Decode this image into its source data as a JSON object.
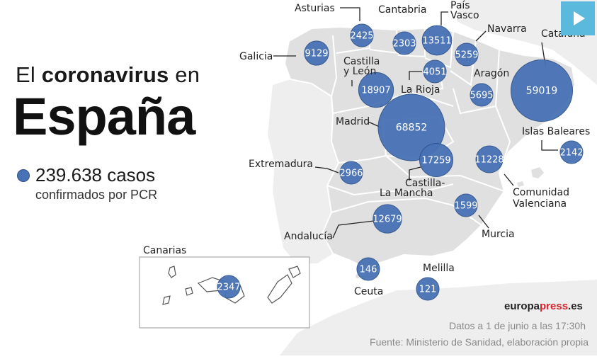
{
  "title": {
    "prefix": "El ",
    "bold": "coronavirus",
    "suffix": " en",
    "country": "España"
  },
  "total": {
    "value": "239.638 casos",
    "subtitle": "confirmados por PCR",
    "dot_color": "#4872b5"
  },
  "play_button": {
    "icon": "play-icon",
    "color": "#5bb9de"
  },
  "brand": {
    "main": "europa",
    "accent": "press",
    "tld": ".es"
  },
  "footer": {
    "date": "Datos a 1 de junio a las 17:30h",
    "source": "Fuente: Ministerio de Sanidad, elaboración propia"
  },
  "inset_label": "Canarias",
  "colors": {
    "bubble": "#4872b5",
    "bubble_stroke": "#2f538a",
    "land": "#e4e4e4",
    "region_border": "#ffffff",
    "sea": "#ffffff"
  },
  "chart_data": {
    "type": "bubble-map",
    "unit": "casos confirmados por PCR",
    "regions": [
      {
        "name": "Galicia",
        "value": 9129
      },
      {
        "name": "Asturias",
        "value": 2425
      },
      {
        "name": "Cantabria",
        "value": 2303
      },
      {
        "name": "País Vasco",
        "value": 13511
      },
      {
        "name": "Navarra",
        "value": 5259
      },
      {
        "name": "Cataluña",
        "value": 59019
      },
      {
        "name": "Castilla y León",
        "value": 18907
      },
      {
        "name": "La Rioja",
        "value": 4051
      },
      {
        "name": "Aragón",
        "value": 5695
      },
      {
        "name": "Madrid",
        "value": 68852
      },
      {
        "name": "Islas Baleares",
        "value": 2142
      },
      {
        "name": "Extremadura",
        "value": 2966
      },
      {
        "name": "Castilla-La Mancha",
        "value": 17259
      },
      {
        "name": "Comunidad Valenciana",
        "value": 11228
      },
      {
        "name": "Murcia",
        "value": 1599
      },
      {
        "name": "Andalucía",
        "value": 12679
      },
      {
        "name": "Ceuta",
        "value": 146
      },
      {
        "name": "Melilla",
        "value": 121
      },
      {
        "name": "Canarias",
        "value": 2347
      }
    ]
  }
}
